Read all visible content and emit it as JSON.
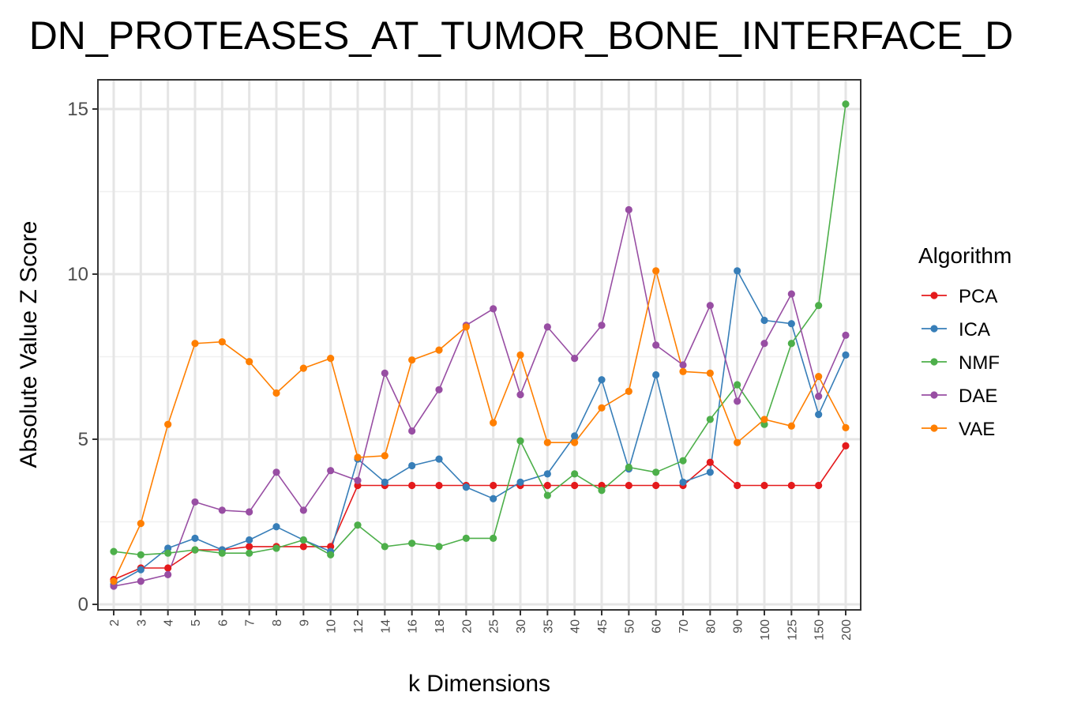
{
  "chart_data": {
    "type": "line",
    "title": "DN_PROTEASES_AT_TUMOR_BONE_INTERFACE_D",
    "xlabel": "k Dimensions",
    "ylabel": "Absolute Value Z Score",
    "ylim": [
      0,
      15.5
    ],
    "yticks": [
      0,
      5,
      10,
      15
    ],
    "grid": true,
    "legend_title": "Algorithm",
    "legend_position": "right",
    "categories": [
      "2",
      "3",
      "4",
      "5",
      "6",
      "7",
      "8",
      "9",
      "10",
      "12",
      "14",
      "16",
      "18",
      "20",
      "25",
      "30",
      "35",
      "40",
      "45",
      "50",
      "60",
      "70",
      "80",
      "90",
      "100",
      "125",
      "150",
      "200"
    ],
    "series": [
      {
        "name": "PCA",
        "color": "#e41a1c",
        "values": [
          0.75,
          1.1,
          1.1,
          1.65,
          1.65,
          1.75,
          1.75,
          1.75,
          1.75,
          3.6,
          3.6,
          3.6,
          3.6,
          3.6,
          3.6,
          3.6,
          3.6,
          3.6,
          3.6,
          3.6,
          3.6,
          3.6,
          4.3,
          3.6,
          3.6,
          3.6,
          3.6,
          4.8
        ]
      },
      {
        "name": "ICA",
        "color": "#377eb8",
        "values": [
          0.6,
          1.05,
          1.7,
          2.0,
          1.65,
          1.95,
          2.35,
          1.95,
          1.6,
          4.4,
          3.7,
          4.2,
          4.4,
          3.55,
          3.2,
          3.7,
          3.95,
          5.1,
          6.8,
          4.1,
          6.95,
          3.7,
          4.0,
          10.1,
          8.6,
          8.5,
          5.75,
          7.55
        ]
      },
      {
        "name": "NMF",
        "color": "#4daf4a",
        "values": [
          1.6,
          1.5,
          1.55,
          1.65,
          1.55,
          1.55,
          1.7,
          1.95,
          1.5,
          2.4,
          1.75,
          1.85,
          1.75,
          2.0,
          2.0,
          4.95,
          3.3,
          3.95,
          3.45,
          4.15,
          4.0,
          4.35,
          5.6,
          6.65,
          5.45,
          7.9,
          9.05,
          15.15
        ]
      },
      {
        "name": "DAE",
        "color": "#984ea3",
        "values": [
          0.55,
          0.7,
          0.9,
          3.1,
          2.85,
          2.8,
          4.0,
          2.85,
          4.05,
          3.75,
          7.0,
          5.25,
          6.5,
          8.45,
          8.95,
          6.35,
          8.4,
          7.45,
          8.45,
          11.95,
          7.85,
          7.25,
          9.05,
          6.15,
          7.9,
          9.4,
          6.3,
          8.15
        ]
      },
      {
        "name": "VAE",
        "color": "#ff7f00",
        "values": [
          0.7,
          2.45,
          5.45,
          7.9,
          7.95,
          7.35,
          6.4,
          7.15,
          7.45,
          4.45,
          4.5,
          7.4,
          7.7,
          8.4,
          5.5,
          7.55,
          4.9,
          4.9,
          5.95,
          6.45,
          10.1,
          7.05,
          7.0,
          4.9,
          5.6,
          5.4,
          6.9,
          5.35
        ]
      }
    ]
  }
}
